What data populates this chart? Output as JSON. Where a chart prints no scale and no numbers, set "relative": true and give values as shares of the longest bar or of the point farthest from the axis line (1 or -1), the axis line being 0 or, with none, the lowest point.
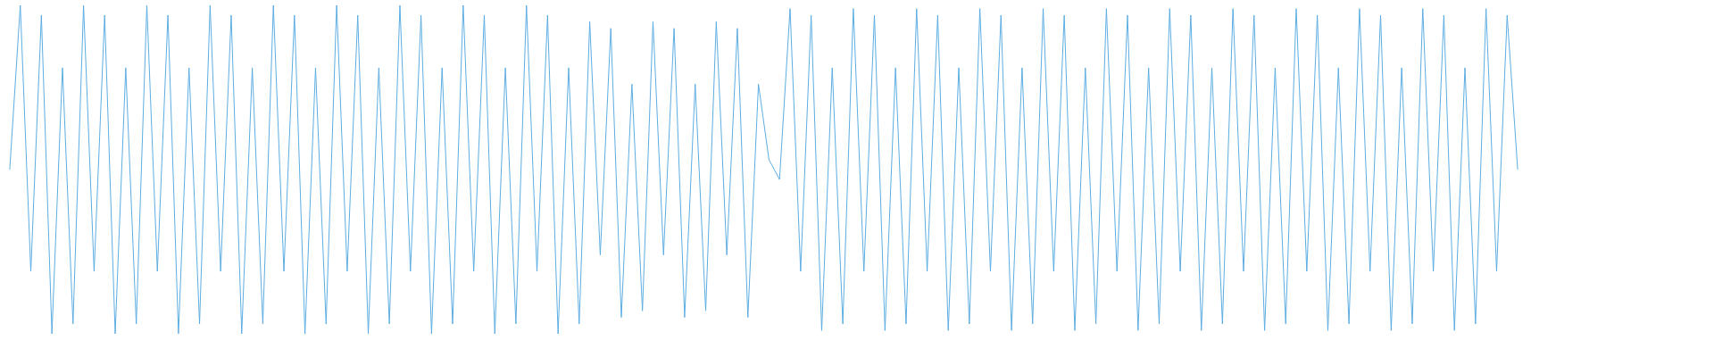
{
  "chart_data": {
    "type": "line",
    "relative": true,
    "color": "#5dade2",
    "categories": [
      null,
      null,
      null,
      null,
      null,
      null,
      null,
      null,
      null,
      null,
      null,
      null,
      null,
      null,
      null,
      null,
      null,
      null,
      null,
      null,
      null,
      null,
      null,
      null,
      null,
      null,
      null,
      null,
      null,
      null,
      null,
      null,
      null,
      null,
      null,
      null,
      null,
      null,
      null,
      null,
      null,
      null,
      null,
      null,
      null,
      null,
      null,
      null,
      null,
      null,
      null,
      null,
      null,
      null,
      null,
      null,
      null,
      null,
      null,
      null,
      null,
      null,
      null,
      null,
      null,
      null,
      null,
      null,
      null,
      null,
      null,
      null,
      null,
      null,
      null,
      null,
      null,
      null,
      null,
      null,
      null,
      null,
      null,
      null,
      null,
      null,
      null,
      null,
      null,
      null,
      null,
      null,
      null,
      null,
      null,
      null,
      null,
      null,
      null,
      null,
      null,
      null,
      null,
      null,
      null,
      null,
      null,
      null,
      null,
      null,
      null,
      null,
      null,
      null,
      null,
      null,
      null,
      null,
      null,
      null,
      null,
      null,
      null,
      null,
      null,
      null,
      null,
      null,
      null,
      null,
      null,
      null,
      null,
      null,
      null,
      null,
      null,
      null,
      null,
      null,
      null,
      null,
      null,
      null,
      null,
      null,
      null,
      null,
      null,
      null,
      null,
      null,
      null,
      null,
      null,
      null,
      null,
      null,
      null,
      null
    ],
    "values": [
      0.5,
      1,
      0.19,
      0.97,
      0,
      0.81,
      0.03,
      1,
      0.19,
      0.97,
      0,
      0.81,
      0.03,
      1,
      0.19,
      0.97,
      0,
      0.81,
      0.03,
      1,
      0.19,
      0.97,
      0,
      0.81,
      0.03,
      1,
      0.19,
      0.97,
      0,
      0.81,
      0.03,
      1,
      0.19,
      0.97,
      0,
      0.81,
      0.03,
      1,
      0.19,
      0.97,
      0,
      0.81,
      0.03,
      1,
      0.19,
      0.97,
      0,
      0.81,
      0.03,
      1,
      0.19,
      0.97,
      0,
      0.81,
      0.03,
      0.95,
      0.24,
      0.93,
      0.05,
      0.76,
      0.07,
      0.95,
      0.24,
      0.93,
      0.05,
      0.76,
      0.07,
      0.95,
      0.24,
      0.93,
      0.05,
      0.76,
      0.53,
      0.47,
      0.99,
      0.19,
      0.97,
      0.01,
      0.81,
      0.03,
      0.99,
      0.19,
      0.97,
      0.01,
      0.81,
      0.03,
      0.99,
      0.19,
      0.97,
      0.01,
      0.81,
      0.03,
      0.99,
      0.19,
      0.97,
      0.01,
      0.81,
      0.03,
      0.99,
      0.19,
      0.97,
      0.01,
      0.81,
      0.03,
      0.99,
      0.19,
      0.97,
      0.01,
      0.81,
      0.03,
      0.99,
      0.19,
      0.97,
      0.01,
      0.81,
      0.03,
      0.99,
      0.19,
      0.97,
      0.01,
      0.81,
      0.03,
      0.99,
      0.19,
      0.97,
      0.01,
      0.81,
      0.03,
      0.99,
      0.19,
      0.97,
      0.01,
      0.81,
      0.03,
      0.99,
      0.19,
      0.97,
      0.01,
      0.81,
      0.03,
      0.99,
      0.19,
      0.97,
      0.5,
      null,
      null,
      null,
      null,
      null,
      null,
      null,
      null,
      null,
      null,
      null,
      null,
      null,
      null,
      null,
      null
    ]
  }
}
